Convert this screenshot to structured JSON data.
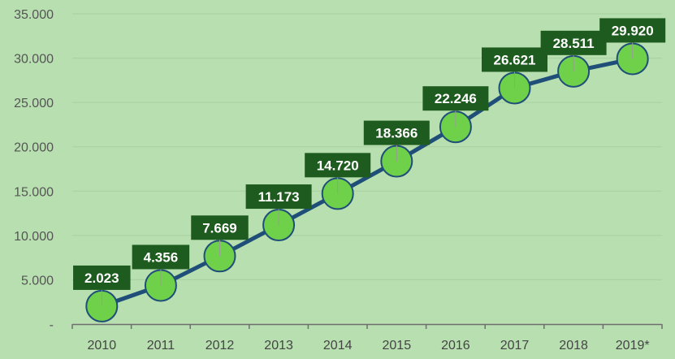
{
  "chart_data": {
    "type": "line",
    "categories": [
      "2010",
      "2011",
      "2012",
      "2013",
      "2014",
      "2015",
      "2016",
      "2017",
      "2018",
      "2019*"
    ],
    "series": [
      {
        "values": [
          2023,
          4356,
          7669,
          11173,
          14720,
          18366,
          22246,
          26621,
          28511,
          29920
        ],
        "labels": [
          "2.023",
          "4.356",
          "7.669",
          "11.173",
          "14.720",
          "18.366",
          "22.246",
          "26.621",
          "28.511",
          "29.920"
        ],
        "color": "#1f4e79",
        "marker_color": "#6fd14a"
      }
    ],
    "y_ticks": [
      0,
      5000,
      10000,
      15000,
      20000,
      25000,
      30000,
      35000
    ],
    "y_tick_labels": [
      "-",
      "5.000",
      "10.000",
      "15.000",
      "20.000",
      "25.000",
      "30.000",
      "35.000"
    ],
    "ylim": [
      0,
      35000
    ],
    "title": "",
    "xlabel": "",
    "ylabel": "",
    "grid": true,
    "legend": "none",
    "colors": {
      "background": "#b8dfb0",
      "grid": "#a7cf9f",
      "label_box": "#1e5b1e",
      "axis": "#6e6e6e"
    }
  }
}
